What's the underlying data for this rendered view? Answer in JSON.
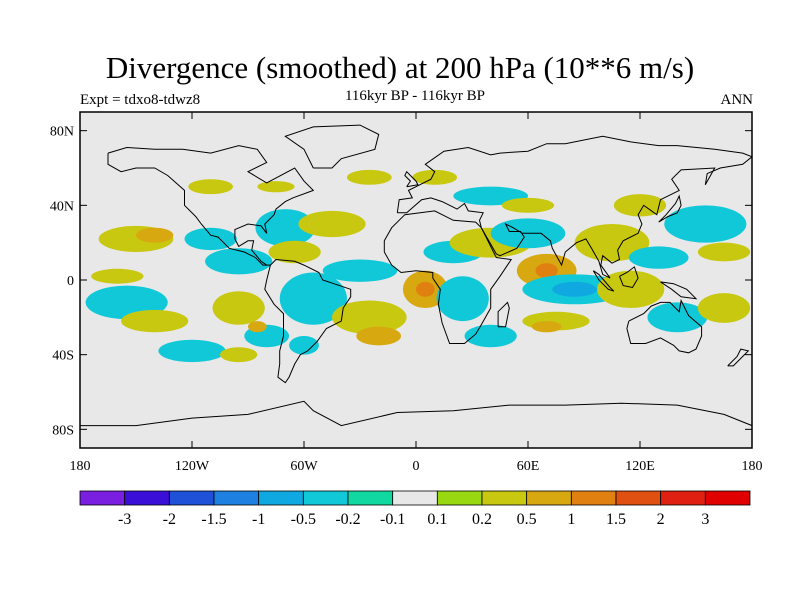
{
  "title": "Divergence (smoothed) at 200 hPa (10**6 m/s)",
  "experiment": "Expt = tdxo8-tdwz8",
  "subtitle": "116kyr BP - 116kyr BP",
  "season": "ANN",
  "map": {
    "projection": "cylindrical-equidistant",
    "lon_range": [
      -180,
      180
    ],
    "lat_range": [
      -90,
      90
    ],
    "background_color": "#e8e8e8",
    "coastline_color": "#000000",
    "lat_ticks": [
      {
        "value": 80,
        "label": "80N"
      },
      {
        "value": 40,
        "label": "40N"
      },
      {
        "value": 0,
        "label": "0"
      },
      {
        "value": -40,
        "label": "40S"
      },
      {
        "value": -80,
        "label": "80S"
      }
    ],
    "lon_ticks": [
      {
        "value": -180,
        "label": "180"
      },
      {
        "value": -120,
        "label": "120W"
      },
      {
        "value": -60,
        "label": "60W"
      },
      {
        "value": 0,
        "label": "0"
      },
      {
        "value": 60,
        "label": "60E"
      },
      {
        "value": 120,
        "label": "120E"
      },
      {
        "value": 180,
        "label": "180"
      }
    ]
  },
  "colorbar": {
    "colors": [
      "#7a1fe0",
      "#3a10d8",
      "#1e50d8",
      "#1e80e0",
      "#10a8e0",
      "#10c8d8",
      "#10d8a0",
      "#e8e8e8",
      "#98d810",
      "#c8c810",
      "#d8a810",
      "#e08010",
      "#e05010",
      "#e02010",
      "#e00000"
    ],
    "labels": [
      "-3",
      "-2",
      "-1.5",
      "-1",
      "-0.5",
      "-0.2",
      "-0.1",
      "0.1",
      "0.2",
      "0.5",
      "1",
      "1.5",
      "2",
      "3"
    ]
  },
  "field_patches": [
    {
      "lon": -150,
      "lat": 22,
      "rx": 20,
      "ry": 7,
      "level": "0.2"
    },
    {
      "lon": -140,
      "lat": 24,
      "rx": 10,
      "ry": 4,
      "level": "0.5"
    },
    {
      "lon": -160,
      "lat": 2,
      "rx": 14,
      "ry": 4,
      "level": "0.2"
    },
    {
      "lon": -155,
      "lat": -12,
      "rx": 22,
      "ry": 9,
      "level": "-0.2"
    },
    {
      "lon": -140,
      "lat": -22,
      "rx": 18,
      "ry": 6,
      "level": "0.2"
    },
    {
      "lon": -110,
      "lat": 22,
      "rx": 14,
      "ry": 6,
      "level": "-0.2"
    },
    {
      "lon": -70,
      "lat": 28,
      "rx": 16,
      "ry": 10,
      "level": "-0.2"
    },
    {
      "lon": -45,
      "lat": 30,
      "rx": 18,
      "ry": 7,
      "level": "0.2"
    },
    {
      "lon": -95,
      "lat": 10,
      "rx": 18,
      "ry": 7,
      "level": "-0.2"
    },
    {
      "lon": -65,
      "lat": 15,
      "rx": 14,
      "ry": 6,
      "level": "0.2"
    },
    {
      "lon": -55,
      "lat": -10,
      "rx": 18,
      "ry": 14,
      "level": "-0.2"
    },
    {
      "lon": -25,
      "lat": -20,
      "rx": 20,
      "ry": 9,
      "level": "0.2"
    },
    {
      "lon": -20,
      "lat": -30,
      "rx": 12,
      "ry": 5,
      "level": "0.5"
    },
    {
      "lon": -95,
      "lat": -15,
      "rx": 14,
      "ry": 9,
      "level": "0.2"
    },
    {
      "lon": -80,
      "lat": -30,
      "rx": 12,
      "ry": 6,
      "level": "-0.2"
    },
    {
      "lon": -120,
      "lat": -38,
      "rx": 18,
      "ry": 6,
      "level": "-0.2"
    },
    {
      "lon": -95,
      "lat": -40,
      "rx": 10,
      "ry": 4,
      "level": "0.2"
    },
    {
      "lon": -30,
      "lat": 5,
      "rx": 20,
      "ry": 6,
      "level": "-0.2"
    },
    {
      "lon": 5,
      "lat": -5,
      "rx": 12,
      "ry": 10,
      "level": "0.5"
    },
    {
      "lon": 5,
      "lat": -5,
      "rx": 5,
      "ry": 4,
      "level": "1"
    },
    {
      "lon": 25,
      "lat": -10,
      "rx": 14,
      "ry": 12,
      "level": "-0.2"
    },
    {
      "lon": 20,
      "lat": 15,
      "rx": 16,
      "ry": 6,
      "level": "-0.2"
    },
    {
      "lon": 40,
      "lat": 20,
      "rx": 22,
      "ry": 8,
      "level": "0.2"
    },
    {
      "lon": 60,
      "lat": 25,
      "rx": 20,
      "ry": 8,
      "level": "-0.2"
    },
    {
      "lon": 70,
      "lat": 5,
      "rx": 16,
      "ry": 9,
      "level": "0.5"
    },
    {
      "lon": 70,
      "lat": 5,
      "rx": 6,
      "ry": 4,
      "level": "1"
    },
    {
      "lon": 85,
      "lat": -5,
      "rx": 28,
      "ry": 8,
      "level": "-0.2"
    },
    {
      "lon": 85,
      "lat": -5,
      "rx": 12,
      "ry": 4,
      "level": "-0.5"
    },
    {
      "lon": 115,
      "lat": -5,
      "rx": 18,
      "ry": 10,
      "level": "0.2"
    },
    {
      "lon": 105,
      "lat": 20,
      "rx": 20,
      "ry": 10,
      "level": "0.2"
    },
    {
      "lon": 130,
      "lat": 12,
      "rx": 16,
      "ry": 6,
      "level": "-0.2"
    },
    {
      "lon": 155,
      "lat": 30,
      "rx": 22,
      "ry": 10,
      "level": "-0.2"
    },
    {
      "lon": 165,
      "lat": 15,
      "rx": 14,
      "ry": 5,
      "level": "0.2"
    },
    {
      "lon": 140,
      "lat": -20,
      "rx": 16,
      "ry": 8,
      "level": "-0.2"
    },
    {
      "lon": 165,
      "lat": -15,
      "rx": 14,
      "ry": 8,
      "level": "0.2"
    },
    {
      "lon": 75,
      "lat": -22,
      "rx": 18,
      "ry": 5,
      "level": "0.2"
    },
    {
      "lon": 70,
      "lat": -25,
      "rx": 8,
      "ry": 3,
      "level": "0.5"
    },
    {
      "lon": 40,
      "lat": -30,
      "rx": 14,
      "ry": 6,
      "level": "-0.2"
    },
    {
      "lon": -25,
      "lat": 55,
      "rx": 12,
      "ry": 4,
      "level": "0.2"
    },
    {
      "lon": 10,
      "lat": 55,
      "rx": 12,
      "ry": 4,
      "level": "0.2"
    },
    {
      "lon": 40,
      "lat": 45,
      "rx": 20,
      "ry": 5,
      "level": "-0.2"
    },
    {
      "lon": 60,
      "lat": 40,
      "rx": 14,
      "ry": 4,
      "level": "0.2"
    },
    {
      "lon": 120,
      "lat": 40,
      "rx": 14,
      "ry": 6,
      "level": "0.2"
    },
    {
      "lon": -110,
      "lat": 50,
      "rx": 12,
      "ry": 4,
      "level": "0.2"
    },
    {
      "lon": -75,
      "lat": 50,
      "rx": 10,
      "ry": 3,
      "level": "0.2"
    },
    {
      "lon": -60,
      "lat": -35,
      "rx": 8,
      "ry": 5,
      "level": "-0.2"
    },
    {
      "lon": -85,
      "lat": -25,
      "rx": 5,
      "ry": 3,
      "level": "0.5"
    }
  ]
}
